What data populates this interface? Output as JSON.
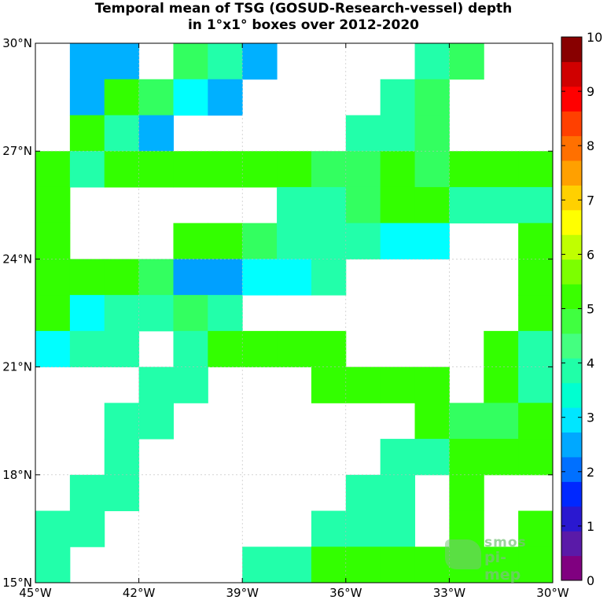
{
  "title_line1": "Temporal mean of TSG (GOSUD-Research-vessel) depth",
  "title_line2": "in 1°x1° boxes over 2012-2020",
  "logo": {
    "line1": "smos",
    "line2": "pi-mep"
  },
  "chart_data": {
    "type": "heatmap",
    "x_ticks": [
      "45°W",
      "42°W",
      "39°W",
      "36°W",
      "33°W",
      "30°W"
    ],
    "y_ticks": [
      "15°N",
      "18°N",
      "21°N",
      "24°N",
      "27°N",
      "30°N"
    ],
    "x_range_lon": [
      -45,
      -30
    ],
    "y_range_lat": [
      15,
      30
    ],
    "grid": true,
    "colorbar": {
      "min": 0,
      "max": 10,
      "ticks": [
        "0",
        "1",
        "2",
        "3",
        "4",
        "5",
        "6",
        "7",
        "8",
        "9",
        "10"
      ],
      "position": "right",
      "colors": [
        "#800080",
        "#5a1aa8",
        "#2a18d0",
        "#0028ff",
        "#0070ff",
        "#00a8ff",
        "#00e6ff",
        "#00ffd0",
        "#20ffa8",
        "#44ff80",
        "#40ff40",
        "#3aff00",
        "#7cff00",
        "#c0ff00",
        "#ffff00",
        "#ffd000",
        "#ffa000",
        "#ff7000",
        "#ff4000",
        "#ff0000",
        "#d00000",
        "#880000"
      ]
    },
    "value_colors": {
      "3.2": "#00a0ff",
      "3.5": "#00b0ff",
      "3.8": "#00ffff",
      "4.0": "#00ffd0",
      "4.3": "#22ffaa",
      "4.6": "#33ff60",
      "4.9": "#33ff00"
    },
    "cells": [
      {
        "lon": -44,
        "lat": 29,
        "v": 3.5
      },
      {
        "lon": -43,
        "lat": 29,
        "v": 3.5
      },
      {
        "lon": -41,
        "lat": 29,
        "v": 4.6
      },
      {
        "lon": -40,
        "lat": 29,
        "v": 4.3
      },
      {
        "lon": -39,
        "lat": 29,
        "v": 3.5
      },
      {
        "lon": -34,
        "lat": 29,
        "v": 4.3
      },
      {
        "lon": -33,
        "lat": 29,
        "v": 4.6
      },
      {
        "lon": -44,
        "lat": 28,
        "v": 3.5
      },
      {
        "lon": -43,
        "lat": 28,
        "v": 4.9
      },
      {
        "lon": -42,
        "lat": 28,
        "v": 4.6
      },
      {
        "lon": -41,
        "lat": 28,
        "v": 3.8
      },
      {
        "lon": -40,
        "lat": 28,
        "v": 3.5
      },
      {
        "lon": -35,
        "lat": 28,
        "v": 4.3
      },
      {
        "lon": -34,
        "lat": 28,
        "v": 4.6
      },
      {
        "lon": -44,
        "lat": 27,
        "v": 4.9
      },
      {
        "lon": -43,
        "lat": 27,
        "v": 4.3
      },
      {
        "lon": -42,
        "lat": 27,
        "v": 3.5
      },
      {
        "lon": -36,
        "lat": 27,
        "v": 4.3
      },
      {
        "lon": -35,
        "lat": 27,
        "v": 4.3
      },
      {
        "lon": -34,
        "lat": 27,
        "v": 4.6
      },
      {
        "lon": -45,
        "lat": 26,
        "v": 4.9
      },
      {
        "lon": -44,
        "lat": 26,
        "v": 4.3
      },
      {
        "lon": -43,
        "lat": 26,
        "v": 4.9
      },
      {
        "lon": -42,
        "lat": 26,
        "v": 4.9
      },
      {
        "lon": -41,
        "lat": 26,
        "v": 4.9
      },
      {
        "lon": -40,
        "lat": 26,
        "v": 4.9
      },
      {
        "lon": -39,
        "lat": 26,
        "v": 4.9
      },
      {
        "lon": -38,
        "lat": 26,
        "v": 4.9
      },
      {
        "lon": -37,
        "lat": 26,
        "v": 4.6
      },
      {
        "lon": -36,
        "lat": 26,
        "v": 4.6
      },
      {
        "lon": -35,
        "lat": 26,
        "v": 4.9
      },
      {
        "lon": -34,
        "lat": 26,
        "v": 4.6
      },
      {
        "lon": -33,
        "lat": 26,
        "v": 4.9
      },
      {
        "lon": -32,
        "lat": 26,
        "v": 4.9
      },
      {
        "lon": -31,
        "lat": 26,
        "v": 4.9
      },
      {
        "lon": -45,
        "lat": 25,
        "v": 4.9
      },
      {
        "lon": -38,
        "lat": 25,
        "v": 4.3
      },
      {
        "lon": -37,
        "lat": 25,
        "v": 4.3
      },
      {
        "lon": -36,
        "lat": 25,
        "v": 4.6
      },
      {
        "lon": -35,
        "lat": 25,
        "v": 4.9
      },
      {
        "lon": -34,
        "lat": 25,
        "v": 4.9
      },
      {
        "lon": -33,
        "lat": 25,
        "v": 4.3
      },
      {
        "lon": -32,
        "lat": 25,
        "v": 4.3
      },
      {
        "lon": -31,
        "lat": 25,
        "v": 4.3
      },
      {
        "lon": -45,
        "lat": 24,
        "v": 4.9
      },
      {
        "lon": -41,
        "lat": 24,
        "v": 4.9
      },
      {
        "lon": -40,
        "lat": 24,
        "v": 4.9
      },
      {
        "lon": -39,
        "lat": 24,
        "v": 4.6
      },
      {
        "lon": -38,
        "lat": 24,
        "v": 4.3
      },
      {
        "lon": -37,
        "lat": 24,
        "v": 4.3
      },
      {
        "lon": -36,
        "lat": 24,
        "v": 4.3
      },
      {
        "lon": -35,
        "lat": 24,
        "v": 3.8
      },
      {
        "lon": -34,
        "lat": 24,
        "v": 3.8
      },
      {
        "lon": -31,
        "lat": 24,
        "v": 4.9
      },
      {
        "lon": -45,
        "lat": 23,
        "v": 4.9
      },
      {
        "lon": -44,
        "lat": 23,
        "v": 4.9
      },
      {
        "lon": -43,
        "lat": 23,
        "v": 4.9
      },
      {
        "lon": -42,
        "lat": 23,
        "v": 4.6
      },
      {
        "lon": -41,
        "lat": 23,
        "v": 3.2
      },
      {
        "lon": -40,
        "lat": 23,
        "v": 3.2
      },
      {
        "lon": -39,
        "lat": 23,
        "v": 3.8
      },
      {
        "lon": -38,
        "lat": 23,
        "v": 3.8
      },
      {
        "lon": -37,
        "lat": 23,
        "v": 4.3
      },
      {
        "lon": -31,
        "lat": 23,
        "v": 4.9
      },
      {
        "lon": -45,
        "lat": 22,
        "v": 4.9
      },
      {
        "lon": -44,
        "lat": 22,
        "v": 3.8
      },
      {
        "lon": -43,
        "lat": 22,
        "v": 4.3
      },
      {
        "lon": -42,
        "lat": 22,
        "v": 4.3
      },
      {
        "lon": -41,
        "lat": 22,
        "v": 4.6
      },
      {
        "lon": -40,
        "lat": 22,
        "v": 4.3
      },
      {
        "lon": -31,
        "lat": 22,
        "v": 4.9
      },
      {
        "lon": -45,
        "lat": 21,
        "v": 3.8
      },
      {
        "lon": -44,
        "lat": 21,
        "v": 4.3
      },
      {
        "lon": -43,
        "lat": 21,
        "v": 4.3
      },
      {
        "lon": -41,
        "lat": 21,
        "v": 4.3
      },
      {
        "lon": -40,
        "lat": 21,
        "v": 4.9
      },
      {
        "lon": -39,
        "lat": 21,
        "v": 4.9
      },
      {
        "lon": -38,
        "lat": 21,
        "v": 4.9
      },
      {
        "lon": -37,
        "lat": 21,
        "v": 4.9
      },
      {
        "lon": -32,
        "lat": 21,
        "v": 4.9
      },
      {
        "lon": -31,
        "lat": 21,
        "v": 4.3
      },
      {
        "lon": -42,
        "lat": 20,
        "v": 4.3
      },
      {
        "lon": -41,
        "lat": 20,
        "v": 4.3
      },
      {
        "lon": -37,
        "lat": 20,
        "v": 4.9
      },
      {
        "lon": -36,
        "lat": 20,
        "v": 4.9
      },
      {
        "lon": -35,
        "lat": 20,
        "v": 4.9
      },
      {
        "lon": -34,
        "lat": 20,
        "v": 4.9
      },
      {
        "lon": -32,
        "lat": 20,
        "v": 4.9
      },
      {
        "lon": -31,
        "lat": 20,
        "v": 4.3
      },
      {
        "lon": -43,
        "lat": 19,
        "v": 4.3
      },
      {
        "lon": -42,
        "lat": 19,
        "v": 4.3
      },
      {
        "lon": -34,
        "lat": 19,
        "v": 4.9
      },
      {
        "lon": -33,
        "lat": 19,
        "v": 4.6
      },
      {
        "lon": -32,
        "lat": 19,
        "v": 4.6
      },
      {
        "lon": -31,
        "lat": 19,
        "v": 4.9
      },
      {
        "lon": -43,
        "lat": 18,
        "v": 4.3
      },
      {
        "lon": -35,
        "lat": 18,
        "v": 4.3
      },
      {
        "lon": -34,
        "lat": 18,
        "v": 4.3
      },
      {
        "lon": -33,
        "lat": 18,
        "v": 4.9
      },
      {
        "lon": -32,
        "lat": 18,
        "v": 4.9
      },
      {
        "lon": -31,
        "lat": 18,
        "v": 4.9
      },
      {
        "lon": -44,
        "lat": 17,
        "v": 4.3
      },
      {
        "lon": -43,
        "lat": 17,
        "v": 4.3
      },
      {
        "lon": -36,
        "lat": 17,
        "v": 4.3
      },
      {
        "lon": -35,
        "lat": 17,
        "v": 4.3
      },
      {
        "lon": -33,
        "lat": 17,
        "v": 4.9
      },
      {
        "lon": -45,
        "lat": 16,
        "v": 4.3
      },
      {
        "lon": -44,
        "lat": 16,
        "v": 4.3
      },
      {
        "lon": -37,
        "lat": 16,
        "v": 4.3
      },
      {
        "lon": -36,
        "lat": 16,
        "v": 4.3
      },
      {
        "lon": -35,
        "lat": 16,
        "v": 4.3
      },
      {
        "lon": -33,
        "lat": 16,
        "v": 4.9
      },
      {
        "lon": -31,
        "lat": 16,
        "v": 4.9
      },
      {
        "lon": -45,
        "lat": 15,
        "v": 4.3
      },
      {
        "lon": -39,
        "lat": 15,
        "v": 4.3
      },
      {
        "lon": -38,
        "lat": 15,
        "v": 4.3
      },
      {
        "lon": -37,
        "lat": 15,
        "v": 4.9
      },
      {
        "lon": -36,
        "lat": 15,
        "v": 4.9
      },
      {
        "lon": -35,
        "lat": 15,
        "v": 4.9
      },
      {
        "lon": -34,
        "lat": 15,
        "v": 4.9
      },
      {
        "lon": -33,
        "lat": 15,
        "v": 4.9
      },
      {
        "lon": -32,
        "lat": 15,
        "v": 4.9
      },
      {
        "lon": -31,
        "lat": 15,
        "v": 4.9
      }
    ]
  }
}
